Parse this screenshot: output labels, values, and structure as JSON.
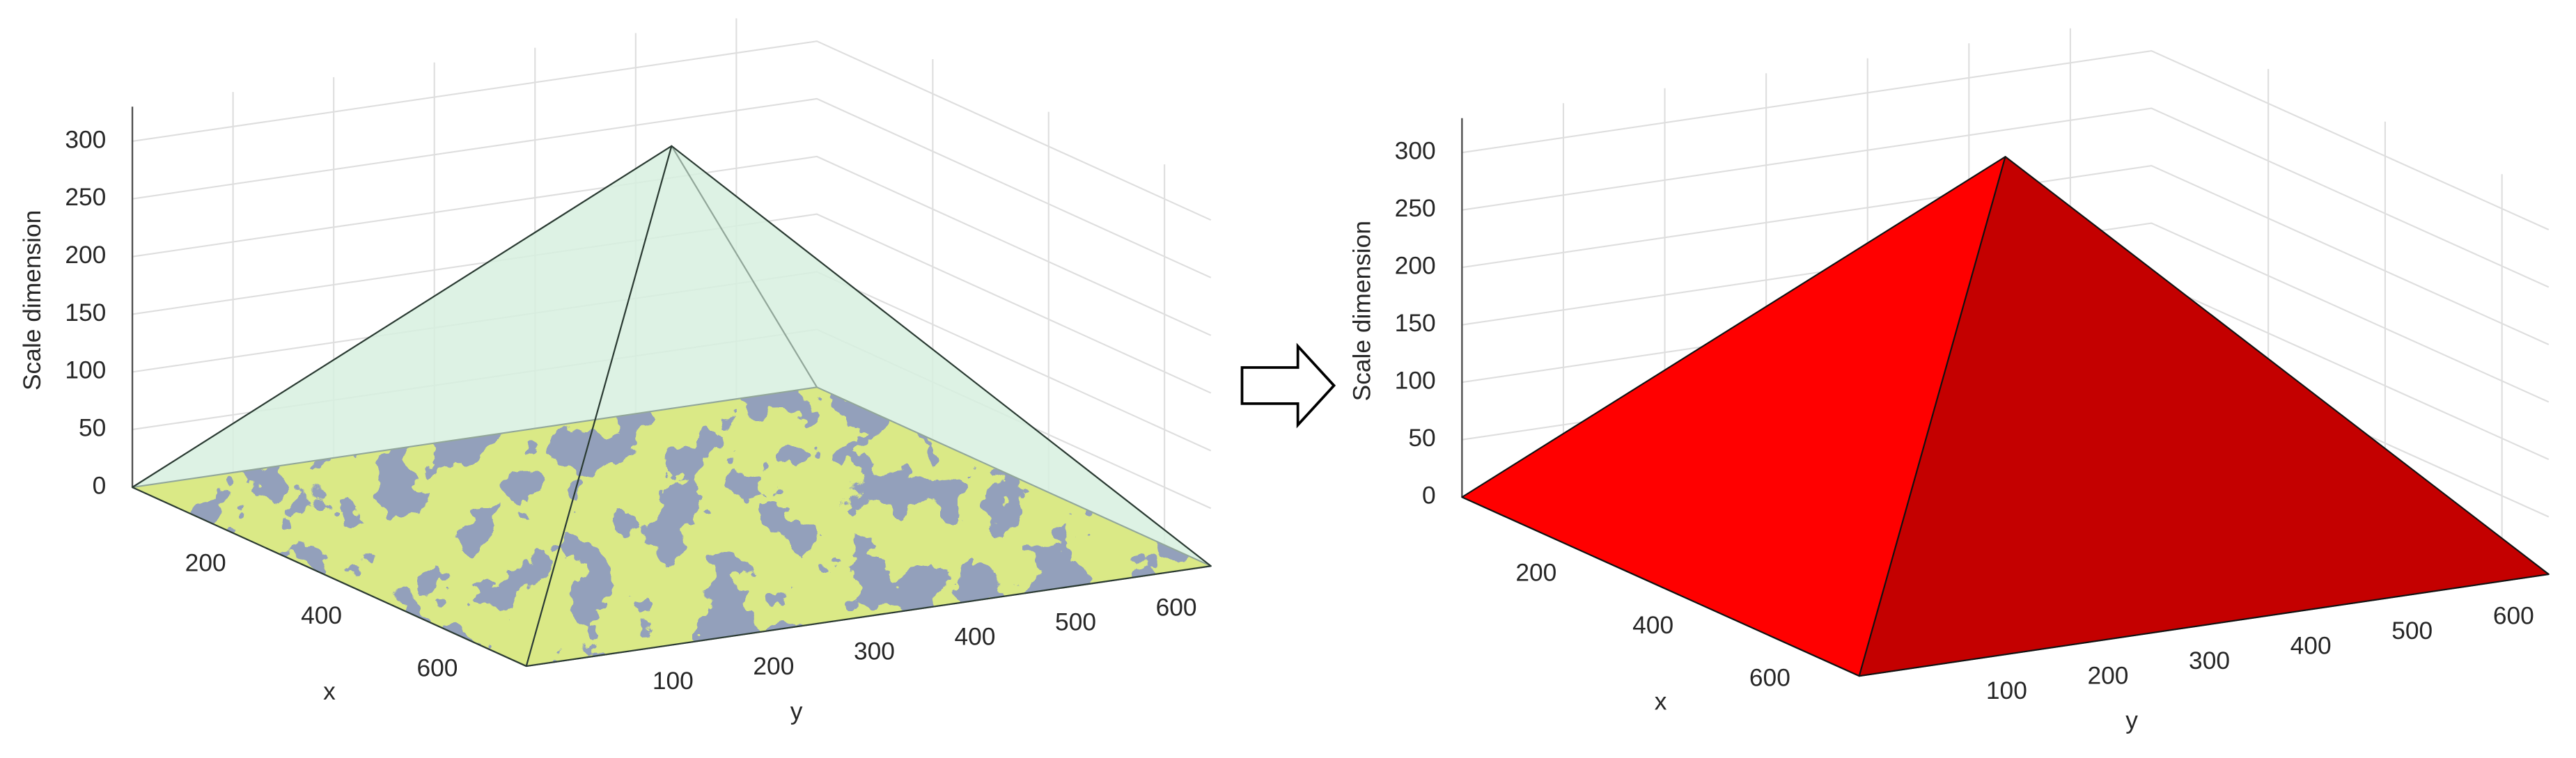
{
  "chart_data": [
    {
      "type": "pyramid3d",
      "xlabel": "x",
      "ylabel": "y",
      "zlabel": "Scale dimension",
      "xlim": [
        0,
        680
      ],
      "ylim": [
        0,
        680
      ],
      "zlim": [
        0,
        330
      ],
      "xticks": [
        200,
        400,
        600
      ],
      "yticks": [
        100,
        200,
        300,
        400,
        500,
        600
      ],
      "zticks": [
        0,
        50,
        100,
        150,
        200,
        250,
        300
      ],
      "grid": true,
      "face_colors": [
        "#d7f0e0",
        "#d7f0e0"
      ],
      "face_alpha": 0.6,
      "base_colors": [
        "#2d2a86",
        "#bcbd00"
      ]
    },
    {
      "type": "pyramid3d",
      "xlabel": "x",
      "ylabel": "y",
      "zlabel": "Scale dimension",
      "xlim": [
        0,
        680
      ],
      "ylim": [
        0,
        680
      ],
      "zlim": [
        0,
        330
      ],
      "xticks": [
        200,
        400,
        600
      ],
      "yticks": [
        100,
        200,
        300,
        400,
        500,
        600
      ],
      "zticks": [
        0,
        50,
        100,
        150,
        200,
        250,
        300
      ],
      "grid": true,
      "face_colors": [
        "#ff0000",
        "#c40000"
      ],
      "face_alpha": 1
    }
  ]
}
